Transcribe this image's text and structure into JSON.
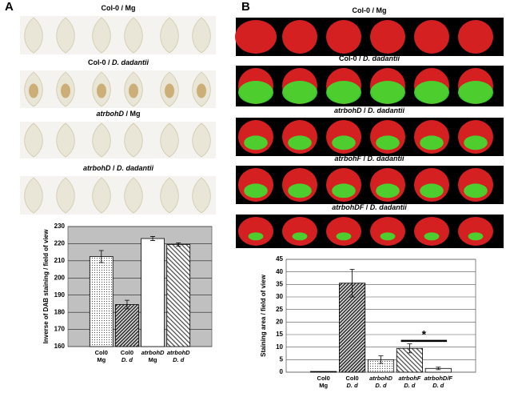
{
  "panels": [
    {
      "label": "A",
      "captions": [
        [
          {
            "text": "Col-0 / Mg",
            "italic": false
          }
        ],
        [
          {
            "text": "Col-0 / ",
            "italic": false
          },
          {
            "text": "D. dadantii",
            "italic": true
          }
        ],
        [
          {
            "text": "atrbohD",
            "italic": true
          },
          {
            "text": " / Mg",
            "italic": false
          }
        ],
        [
          {
            "text": "atrbohD",
            "italic": true
          },
          {
            "text": " / ",
            "italic": false
          },
          {
            "text": "D. dadantii",
            "italic": true
          }
        ]
      ]
    },
    {
      "label": "B",
      "captions": [
        [
          {
            "text": "Col-0 / Mg",
            "italic": false
          }
        ],
        [
          {
            "text": "Col-0 / ",
            "italic": false
          },
          {
            "text": "D. dadantii",
            "italic": true
          }
        ],
        [
          {
            "text": "atrbohD",
            "italic": true
          },
          {
            "text": " / ",
            "italic": false
          },
          {
            "text": "D. dadantii",
            "italic": true
          }
        ],
        [
          {
            "text": "atrbohF",
            "italic": true
          },
          {
            "text": " / ",
            "italic": false
          },
          {
            "text": "D. dadantii",
            "italic": true
          }
        ],
        [
          {
            "text": "atrbohDF",
            "italic": true
          },
          {
            "text": " / ",
            "italic": false
          },
          {
            "text": "D. dadantii",
            "italic": true
          }
        ]
      ]
    }
  ],
  "chart_data": [
    {
      "type": "bar",
      "y_label": "Inverse of DAB staining / field of view",
      "categories": [
        [
          "Col0",
          "Mg"
        ],
        [
          "Col0",
          "D. d"
        ],
        [
          "atrbohD",
          "Mg"
        ],
        [
          "atrbohD",
          "D. d"
        ]
      ],
      "values": [
        212.5,
        184.5,
        223,
        219.5
      ],
      "errors": [
        3.5,
        2.5,
        1.2,
        1
      ],
      "fills": [
        "dots",
        "hatch-dark",
        "white",
        "hatch"
      ],
      "ylim": [
        160,
        230
      ],
      "yticks": [
        160,
        170,
        180,
        190,
        200,
        210,
        220,
        230
      ],
      "grid": true,
      "background": "#c0c0c0"
    },
    {
      "type": "bar",
      "y_label": "Staining area / field of view",
      "categories": [
        [
          "Col0",
          "Mg"
        ],
        [
          "Col0",
          "D. d"
        ],
        [
          "atrbohD",
          "D. d"
        ],
        [
          "atrbohF",
          "D. d"
        ],
        [
          "atrbohD/F",
          "D. d"
        ]
      ],
      "values": [
        0.3,
        35.5,
        5,
        9.5,
        1.5
      ],
      "errors": [
        0,
        5.5,
        1.5,
        1.8,
        0.5
      ],
      "fills": [
        "black",
        "hatch-dark",
        "dots",
        "hatch",
        "white"
      ],
      "ylim": [
        0,
        45
      ],
      "yticks": [
        0,
        5,
        10,
        15,
        20,
        25,
        30,
        35,
        40,
        45
      ],
      "grid": true,
      "background": "#ffffff",
      "significance": {
        "from": 3,
        "to": 4,
        "value": 12.5,
        "text": "*",
        "text_y": 14.8
      }
    }
  ]
}
